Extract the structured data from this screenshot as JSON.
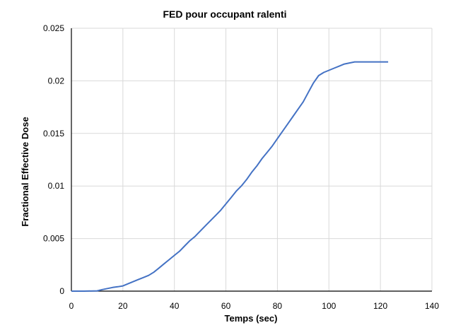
{
  "chart_data": {
    "type": "line",
    "title": "FED pour occupant ralenti",
    "xlabel": "Temps (sec)",
    "ylabel": "Fractional Effective Dose",
    "xlim": [
      0,
      140
    ],
    "ylim": [
      0,
      0.025
    ],
    "x_ticks": [
      "0",
      "20",
      "40",
      "60",
      "80",
      "100",
      "120",
      "140"
    ],
    "y_ticks": [
      "0",
      "0.005",
      "0.01",
      "0.015",
      "0.02",
      "0.025"
    ],
    "grid": true,
    "legend": "none",
    "series": [
      {
        "color": "#4472C4",
        "x": [
          0,
          5,
          10,
          12,
          14,
          16,
          18,
          20,
          22,
          24,
          26,
          28,
          30,
          32,
          34,
          36,
          38,
          40,
          42,
          44,
          46,
          48,
          50,
          52,
          54,
          56,
          58,
          60,
          62,
          64,
          66,
          68,
          70,
          72,
          74,
          76,
          78,
          80,
          82,
          84,
          86,
          88,
          90,
          92,
          94,
          96,
          98,
          100,
          102,
          104,
          106,
          108,
          110,
          112,
          114,
          116,
          118,
          120,
          122,
          123
        ],
        "y": [
          0,
          0,
          3e-05,
          0.00015,
          0.00025,
          0.00035,
          0.00042,
          0.0005,
          0.0007,
          0.0009,
          0.0011,
          0.0013,
          0.0015,
          0.0018,
          0.0022,
          0.0026,
          0.003,
          0.0034,
          0.0038,
          0.0043,
          0.0048,
          0.0052,
          0.0057,
          0.0062,
          0.0067,
          0.0072,
          0.0077,
          0.0083,
          0.0089,
          0.0095,
          0.01,
          0.0106,
          0.0113,
          0.0119,
          0.0126,
          0.0132,
          0.0138,
          0.0145,
          0.0152,
          0.0159,
          0.0166,
          0.0173,
          0.018,
          0.0189,
          0.0198,
          0.0205,
          0.0208,
          0.021,
          0.0212,
          0.0214,
          0.0216,
          0.0217,
          0.0218,
          0.0218,
          0.0218,
          0.0218,
          0.0218,
          0.0218,
          0.0218,
          0.0218
        ]
      }
    ]
  }
}
